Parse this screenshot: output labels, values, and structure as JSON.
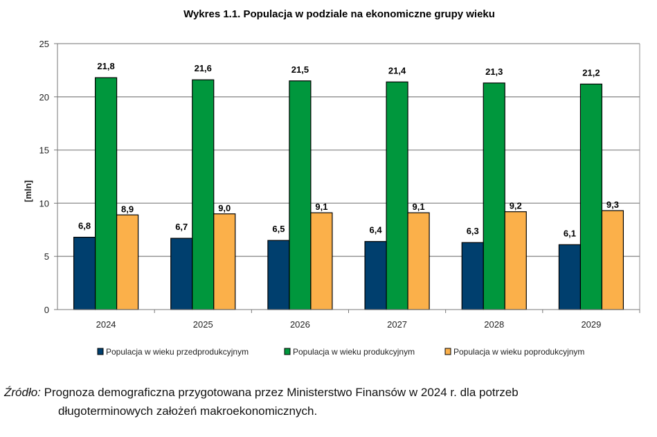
{
  "chart_data": {
    "type": "bar",
    "title": "Wykres 1.1. Populacja  w podziale na ekonomiczne grupy wieku",
    "ylabel": "[mln]",
    "xlabel": "",
    "ylim": [
      0,
      25
    ],
    "yticks": [
      0,
      5,
      10,
      15,
      20,
      25
    ],
    "grid": true,
    "legend_position": "bottom",
    "categories": [
      "2024",
      "2025",
      "2026",
      "2027",
      "2028",
      "2029"
    ],
    "series": [
      {
        "name": "Populacja w wieku przedprodukcyjnym",
        "color": "#003f6e",
        "values": [
          6.8,
          6.7,
          6.5,
          6.4,
          6.3,
          6.1
        ],
        "labels": [
          "6,8",
          "6,7",
          "6,5",
          "6,4",
          "6,3",
          "6,1"
        ]
      },
      {
        "name": "Populacja w wieku produkcyjnym",
        "color": "#00973d",
        "values": [
          21.8,
          21.6,
          21.5,
          21.4,
          21.3,
          21.2
        ],
        "labels": [
          "21,8",
          "21,6",
          "21,5",
          "21,4",
          "21,3",
          "21,2"
        ]
      },
      {
        "name": "Populacja w wieku poprodukcyjnym",
        "color": "#fbb04a",
        "values": [
          8.9,
          9.0,
          9.1,
          9.1,
          9.2,
          9.3
        ],
        "labels": [
          "8,9",
          "9,0",
          "9,1",
          "9,1",
          "9,2",
          "9,3"
        ]
      }
    ]
  },
  "source": {
    "label": "Źródło:",
    "line1": " Prognoza demograficzna przygotowana przez Ministerstwo Finansów w 2024 r. dla potrzeb",
    "line2": "długoterminowych założeń makroekonomicznych."
  }
}
